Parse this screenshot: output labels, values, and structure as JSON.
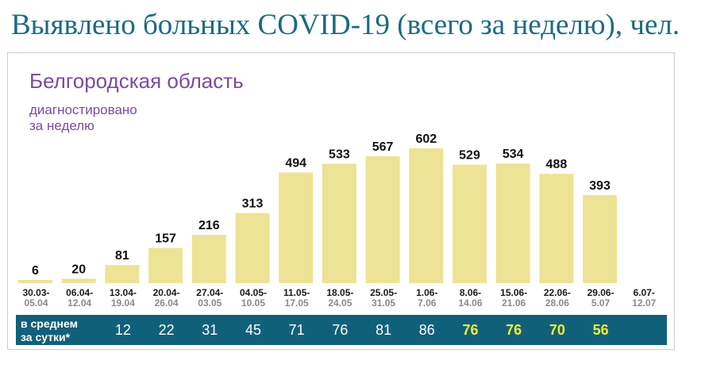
{
  "title": "Выявлено больных COVID-19 (всего за неделю), чел.",
  "region": "Белгородская область",
  "subtitle_lines": [
    "диагностировано",
    "за неделю"
  ],
  "average_label_lines": [
    "в среднем",
    "за сутки*"
  ],
  "colors": {
    "bar": "#ede394",
    "avg_band": "#11607a",
    "highlight": "#f6eb38",
    "title": "#1d6a82",
    "region": "#7a4ba0"
  },
  "chart_data": {
    "type": "bar",
    "title": "Выявлено больных COVID-19 (всего за неделю), чел.",
    "subtitle": "Белгородская область",
    "ylabel": "диагностировано за неделю",
    "categories_line1": [
      "30.03-",
      "06.04-",
      "13.04-",
      "20.04-",
      "27.04-",
      "04.05-",
      "11.05-",
      "18.05-",
      "25.05-",
      "1.06-",
      "8.06-",
      "15.06-",
      "22.06-",
      "29.06-",
      "6.07-"
    ],
    "categories_line2": [
      "05.04",
      "12.04",
      "19.04",
      "26.04",
      "03.05",
      "10.05",
      "17.05",
      "24.05",
      "31.05",
      "7.06",
      "14.06",
      "21.06",
      "28.06",
      "5.07",
      "12.07"
    ],
    "values": [
      6,
      20,
      81,
      157,
      216,
      313,
      494,
      533,
      567,
      602,
      529,
      534,
      488,
      393,
      null
    ],
    "daily_average": [
      "12",
      "22",
      "31",
      "45",
      "71",
      "76",
      "81",
      "86",
      "76",
      "76",
      "70",
      "56"
    ],
    "ylim": [
      0,
      602
    ],
    "grid": false
  }
}
